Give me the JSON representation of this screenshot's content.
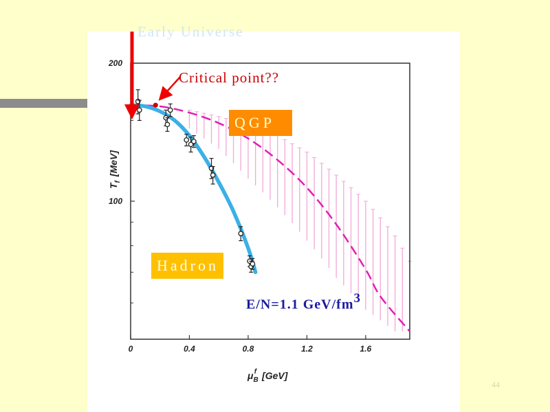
{
  "slide": {
    "early_universe_label": "Early Universe",
    "page_number": "44"
  },
  "labels": {
    "critical_point": "Critical point??",
    "qgp": "QGP",
    "hadron": "Hadron",
    "energy_per_particle": "E/N=1.1 GeV/fm",
    "energy_exponent": "3"
  },
  "colors": {
    "fit_curve": "#3bb0e6",
    "dashed_curve": "#e020b0",
    "error_band": "#f2a8d8",
    "arrow": "#ee0000",
    "data_points": "#222222"
  },
  "chart_data": {
    "type": "scatter",
    "xlabel": "μ_B^f [GeV]",
    "ylabel": "T_f [MeV]",
    "xlim": [
      0,
      1.9
    ],
    "ylim": [
      50,
      200
    ],
    "y_scale": "log",
    "x_ticks": [
      "0",
      "0.4",
      "0.8",
      "1.2",
      "1.6"
    ],
    "x_tick_values": [
      0,
      0.4,
      0.8,
      1.2,
      1.6
    ],
    "y_ticks": [
      "200",
      "100"
    ],
    "y_tick_values": [
      200,
      100
    ],
    "series": [
      {
        "role": "freeze-out points",
        "points": [
          {
            "x": 0.05,
            "y": 165,
            "err": 10
          },
          {
            "x": 0.06,
            "y": 158,
            "err": 8
          },
          {
            "x": 0.24,
            "y": 152,
            "err": 6
          },
          {
            "x": 0.25,
            "y": 147,
            "err": 5
          },
          {
            "x": 0.27,
            "y": 158,
            "err": 5
          },
          {
            "x": 0.38,
            "y": 136,
            "err": 4
          },
          {
            "x": 0.41,
            "y": 133,
            "err": 5
          },
          {
            "x": 0.43,
            "y": 135,
            "err": 4
          },
          {
            "x": 0.55,
            "y": 118,
            "err": 6
          },
          {
            "x": 0.56,
            "y": 114,
            "err": 5
          },
          {
            "x": 0.75,
            "y": 85,
            "err": 3
          },
          {
            "x": 0.81,
            "y": 74,
            "err": 2
          },
          {
            "x": 0.82,
            "y": 72,
            "err": 2
          },
          {
            "x": 0.83,
            "y": 73,
            "err": 2
          }
        ]
      },
      {
        "role": "freeze-out fit curve",
        "points": [
          {
            "x": 0.0,
            "y": 162
          },
          {
            "x": 0.1,
            "y": 161
          },
          {
            "x": 0.2,
            "y": 157
          },
          {
            "x": 0.3,
            "y": 150
          },
          {
            "x": 0.4,
            "y": 139
          },
          {
            "x": 0.5,
            "y": 125
          },
          {
            "x": 0.6,
            "y": 110
          },
          {
            "x": 0.7,
            "y": 95
          },
          {
            "x": 0.8,
            "y": 79
          },
          {
            "x": 0.85,
            "y": 70
          }
        ]
      },
      {
        "role": "E/N=1.1 GeV/fm3 curve",
        "points": [
          {
            "x": 0.0,
            "y": 162
          },
          {
            "x": 0.2,
            "y": 161
          },
          {
            "x": 0.4,
            "y": 156
          },
          {
            "x": 0.6,
            "y": 148
          },
          {
            "x": 0.8,
            "y": 137
          },
          {
            "x": 1.0,
            "y": 123
          },
          {
            "x": 1.2,
            "y": 107
          },
          {
            "x": 1.4,
            "y": 89
          },
          {
            "x": 1.6,
            "y": 71
          },
          {
            "x": 1.7,
            "y": 62
          },
          {
            "x": 1.9,
            "y": 52
          }
        ]
      },
      {
        "role": "error band",
        "points": [
          {
            "x": 0.4,
            "low": 144,
            "high": 158
          },
          {
            "x": 0.6,
            "low": 130,
            "high": 153
          },
          {
            "x": 0.8,
            "low": 112,
            "high": 147
          },
          {
            "x": 1.0,
            "low": 97,
            "high": 139
          },
          {
            "x": 1.2,
            "low": 82,
            "high": 128
          },
          {
            "x": 1.4,
            "low": 68,
            "high": 114
          },
          {
            "x": 1.6,
            "low": 58,
            "high": 100
          },
          {
            "x": 1.8,
            "low": 52,
            "high": 84
          },
          {
            "x": 1.9,
            "low": 52,
            "high": 74
          }
        ]
      }
    ],
    "critical_point": {
      "x": 0.17,
      "y": 162
    }
  }
}
